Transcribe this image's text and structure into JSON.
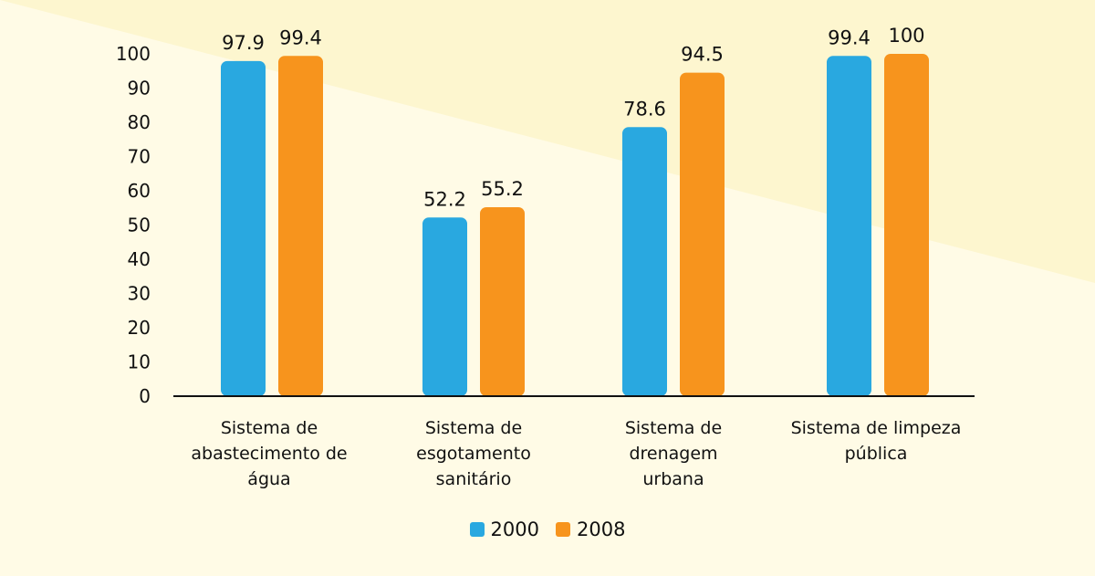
{
  "chart_data": {
    "type": "bar",
    "categories": [
      "Sistema de abastecimento de água",
      "Sistema de esgotamento sanitário",
      "Sistema de drenagem urbana",
      "Sistema de limpeza pública"
    ],
    "series": [
      {
        "name": "2000",
        "values": [
          97.9,
          52.2,
          78.6,
          99.4
        ],
        "labels": [
          "97.9",
          "52.2",
          "78.6",
          "99.4"
        ],
        "color": "#29a8e0"
      },
      {
        "name": "2008",
        "values": [
          99.4,
          55.2,
          94.5,
          100
        ],
        "labels": [
          "99.4",
          "55.2",
          "94.5",
          "100"
        ],
        "color": "#f7941d"
      }
    ],
    "yticks": [
      "0",
      "10",
      "20",
      "30",
      "40",
      "50",
      "60",
      "70",
      "80",
      "90",
      "100"
    ],
    "ylim": [
      0,
      100
    ],
    "grid": false,
    "legend_position": "bottom-center",
    "title": "",
    "xlabel": "",
    "ylabel": ""
  },
  "labels": {
    "categories": [
      [
        "Sistema de",
        "abastecimento de",
        "água"
      ],
      [
        "Sistema de",
        "esgotamento",
        "sanitário"
      ],
      [
        "Sistema de drenagem",
        "urbana"
      ],
      [
        "Sistema de limpeza",
        "pública"
      ]
    ]
  },
  "colors": {
    "background_light": "#fffbe6",
    "background_dark": "#fdf6cf",
    "axis": "#111111"
  }
}
